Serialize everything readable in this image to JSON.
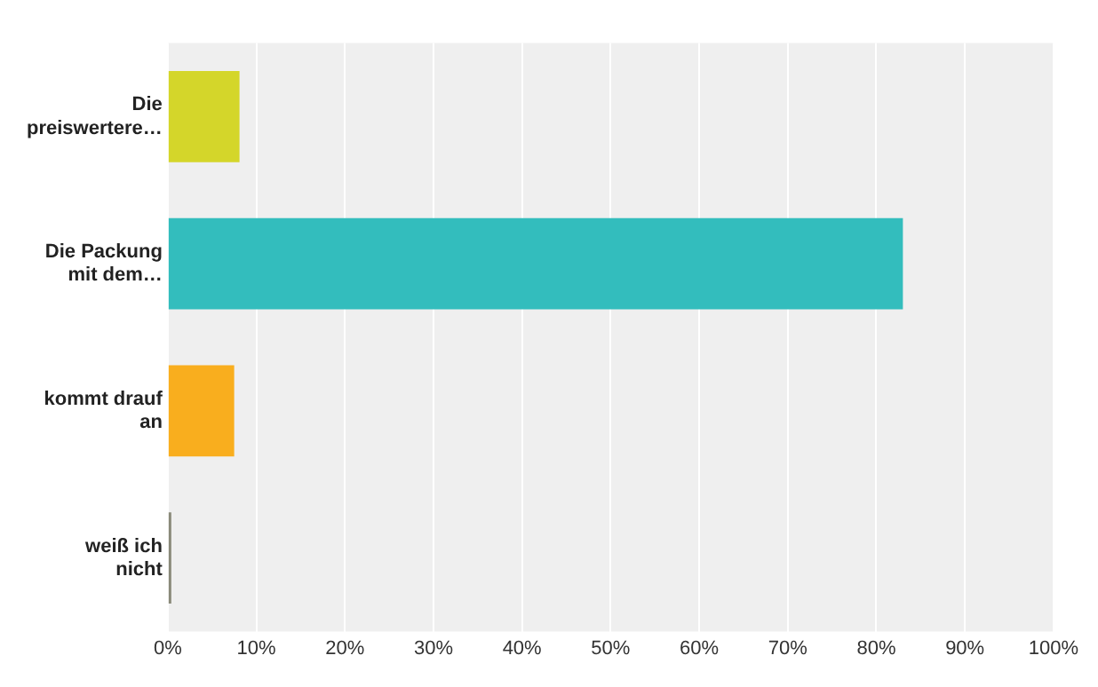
{
  "chart_data": {
    "type": "bar",
    "orientation": "horizontal",
    "categories": [
      "Die preiswertere…",
      "Die Packung mit dem…",
      "kommt drauf an",
      "weiß ich nicht"
    ],
    "values": [
      8.1,
      83,
      7.5,
      0.4
    ],
    "colors": [
      "#d4d62a",
      "#33bdbd",
      "#f9ae1e",
      "#8a8a7a"
    ],
    "xlim": [
      0,
      100
    ],
    "xticks": [
      {
        "value": 0,
        "label": "0%"
      },
      {
        "value": 10,
        "label": "10%"
      },
      {
        "value": 20,
        "label": "20%"
      },
      {
        "value": 30,
        "label": "30%"
      },
      {
        "value": 40,
        "label": "40%"
      },
      {
        "value": 50,
        "label": "50%"
      },
      {
        "value": 60,
        "label": "60%"
      },
      {
        "value": 70,
        "label": "70%"
      },
      {
        "value": 80,
        "label": "80%"
      },
      {
        "value": 90,
        "label": "90%"
      },
      {
        "value": 100,
        "label": "100%"
      }
    ],
    "grid": "x",
    "legend": false
  }
}
